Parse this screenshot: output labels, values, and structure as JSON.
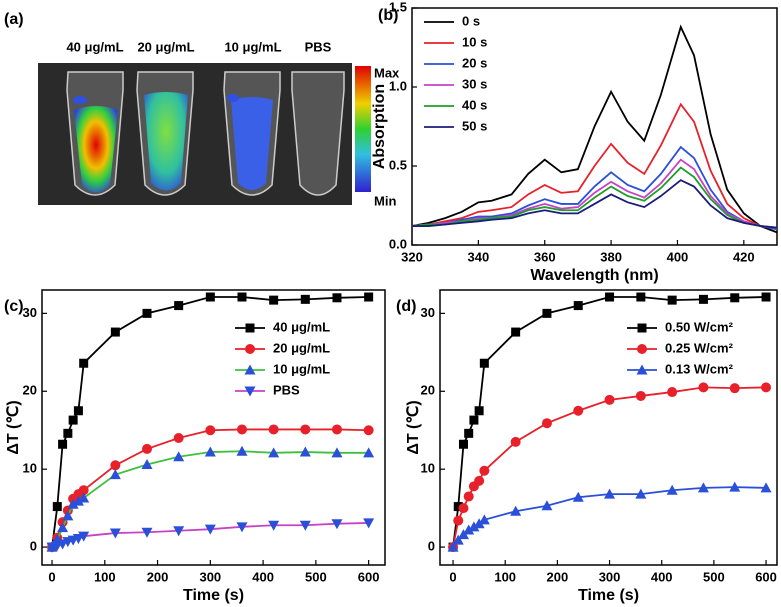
{
  "chart_data": [
    {
      "type": "image",
      "panel": "(a)",
      "labels": [
        "40 μg/mL",
        "20 μg/mL",
        "10 μg/mL",
        "PBS"
      ],
      "colorbar_labels": [
        "Max",
        "Min"
      ]
    },
    {
      "type": "line",
      "panel": "(b)",
      "xlabel": "Wavelength (nm)",
      "ylabel": "Absorption",
      "x": [
        320,
        325,
        330,
        335,
        340,
        344,
        350,
        355,
        360,
        365,
        370,
        375,
        380,
        385,
        390,
        395,
        401,
        405,
        410,
        415,
        420,
        425,
        430
      ],
      "xlim": [
        320,
        430
      ],
      "xticks": [
        320,
        340,
        360,
        380,
        400,
        420
      ],
      "ylim": [
        0,
        1.5
      ],
      "yticks": [
        {
          "value": 0,
          "label": "0.0"
        },
        {
          "value": 0.5,
          "label": "0.5"
        },
        {
          "value": 1,
          "label": "1.0"
        },
        {
          "value": 1.5,
          "label": "1.5"
        }
      ],
      "legend": "upper left",
      "series": [
        {
          "name": "0 s",
          "color": "#000000",
          "values": [
            0.12,
            0.14,
            0.17,
            0.21,
            0.27,
            0.28,
            0.32,
            0.45,
            0.54,
            0.46,
            0.48,
            0.75,
            0.97,
            0.78,
            0.66,
            0.95,
            1.38,
            1.2,
            0.7,
            0.35,
            0.2,
            0.12,
            0.08
          ]
        },
        {
          "name": "10 s",
          "color": "#e8202a",
          "values": [
            0.12,
            0.13,
            0.15,
            0.17,
            0.21,
            0.22,
            0.24,
            0.32,
            0.38,
            0.33,
            0.34,
            0.5,
            0.64,
            0.52,
            0.45,
            0.63,
            0.89,
            0.78,
            0.47,
            0.26,
            0.17,
            0.12,
            0.1
          ]
        },
        {
          "name": "20 s",
          "color": "#2a4fd8",
          "values": [
            0.12,
            0.13,
            0.14,
            0.16,
            0.18,
            0.18,
            0.2,
            0.25,
            0.29,
            0.26,
            0.26,
            0.37,
            0.46,
            0.38,
            0.34,
            0.45,
            0.62,
            0.55,
            0.35,
            0.21,
            0.15,
            0.12,
            0.1
          ]
        },
        {
          "name": "30 s",
          "color": "#c842c8",
          "values": [
            0.12,
            0.13,
            0.14,
            0.15,
            0.17,
            0.17,
            0.19,
            0.23,
            0.26,
            0.23,
            0.24,
            0.33,
            0.4,
            0.34,
            0.3,
            0.39,
            0.54,
            0.48,
            0.31,
            0.2,
            0.15,
            0.12,
            0.11
          ]
        },
        {
          "name": "40 s",
          "color": "#1f9e2a",
          "values": [
            0.12,
            0.13,
            0.13,
            0.15,
            0.16,
            0.17,
            0.18,
            0.22,
            0.24,
            0.22,
            0.22,
            0.3,
            0.37,
            0.31,
            0.28,
            0.36,
            0.49,
            0.43,
            0.29,
            0.19,
            0.14,
            0.12,
            0.11
          ]
        },
        {
          "name": "50 s",
          "color": "#1c1c7a",
          "values": [
            0.12,
            0.12,
            0.13,
            0.14,
            0.15,
            0.16,
            0.17,
            0.2,
            0.22,
            0.2,
            0.2,
            0.26,
            0.32,
            0.27,
            0.24,
            0.31,
            0.41,
            0.37,
            0.25,
            0.17,
            0.14,
            0.12,
            0.11
          ]
        }
      ]
    },
    {
      "type": "line",
      "panel": "(c)",
      "xlabel": "Time (s)",
      "ylabel": "ΔT (℃)",
      "x": [
        0,
        10,
        20,
        30,
        40,
        50,
        60,
        120,
        180,
        240,
        300,
        360,
        420,
        480,
        540,
        600
      ],
      "xlim": [
        -19,
        631
      ],
      "xticks": [
        0,
        100,
        200,
        300,
        400,
        500,
        600
      ],
      "ylim": [
        -2.3,
        33
      ],
      "yticks": [
        0,
        10,
        20,
        30
      ],
      "legend": "upper right",
      "series": [
        {
          "name": "40 μg/mL",
          "color": "#000000",
          "marker": "square",
          "marker_color": "#000000",
          "values": [
            0,
            5.2,
            13.2,
            14.6,
            16.3,
            17.5,
            23.6,
            27.6,
            30.0,
            31.0,
            32.1,
            32.1,
            31.7,
            31.8,
            32.0,
            32.1
          ]
        },
        {
          "name": "20 μg/mL",
          "color": "#e8202a",
          "marker": "circle",
          "marker_color": "#e8202a",
          "values": [
            0,
            1.2,
            3.2,
            4.7,
            6.2,
            6.8,
            7.3,
            10.5,
            12.6,
            14.0,
            15.0,
            15.1,
            15.1,
            15.1,
            15.1,
            15.0
          ]
        },
        {
          "name": "10 μg/mL",
          "color": "#3fbf3f",
          "marker": "triangle",
          "marker_color": "#2a4fd8",
          "values": [
            0,
            1.0,
            2.5,
            4.0,
            5.5,
            5.9,
            6.3,
            9.3,
            10.6,
            11.6,
            12.2,
            12.3,
            12.1,
            12.2,
            12.1,
            12.1
          ]
        },
        {
          "name": "PBS",
          "color": "#c842c8",
          "marker": "triangle-down",
          "marker_color": "#2a4fd8",
          "values": [
            0,
            0.2,
            0.4,
            0.7,
            0.9,
            1.1,
            1.4,
            1.8,
            1.9,
            2.1,
            2.3,
            2.6,
            2.8,
            2.8,
            3.0,
            3.1
          ]
        }
      ]
    },
    {
      "type": "line",
      "panel": "(d)",
      "xlabel": "Time (s)",
      "ylabel": "ΔT (℃)",
      "x": [
        0,
        10,
        20,
        30,
        40,
        50,
        60,
        120,
        180,
        240,
        300,
        360,
        420,
        480,
        540,
        600
      ],
      "xlim": [
        -25,
        621
      ],
      "xticks": [
        0,
        100,
        200,
        300,
        400,
        500,
        600
      ],
      "ylim": [
        -2.3,
        33
      ],
      "yticks": [
        0,
        10,
        20,
        30
      ],
      "legend": "upper right",
      "series": [
        {
          "name": "0.50 W/cm²",
          "color": "#000000",
          "marker": "square",
          "marker_color": "#000000",
          "values": [
            0,
            5.2,
            13.2,
            14.6,
            16.3,
            17.5,
            23.6,
            27.6,
            30.0,
            31.0,
            32.1,
            32.1,
            31.7,
            31.8,
            32.0,
            32.1
          ]
        },
        {
          "name": "0.25 W/cm²",
          "color": "#e8202a",
          "marker": "circle",
          "marker_color": "#e8202a",
          "values": [
            0,
            3.4,
            5.0,
            6.5,
            7.8,
            8.5,
            9.8,
            13.5,
            15.9,
            17.5,
            18.9,
            19.4,
            19.9,
            20.5,
            20.4,
            20.5
          ]
        },
        {
          "name": "0.13 W/cm²",
          "color": "#2a4fd8",
          "marker": "triangle",
          "marker_color": "#2a4fd8",
          "values": [
            0,
            0.9,
            1.6,
            2.2,
            2.6,
            3.0,
            3.5,
            4.6,
            5.3,
            6.4,
            6.8,
            6.8,
            7.3,
            7.6,
            7.7,
            7.6
          ]
        }
      ]
    }
  ]
}
